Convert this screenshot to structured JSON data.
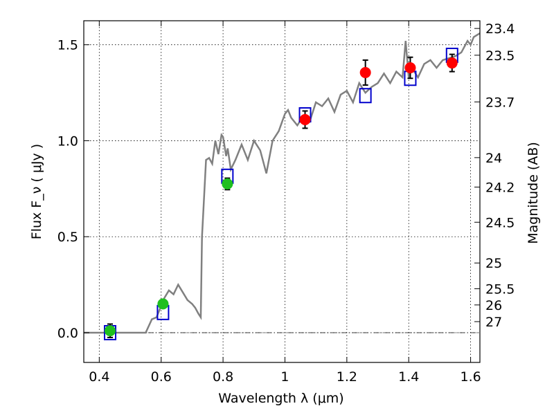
{
  "chart_data": {
    "type": "scatter",
    "xlabel": "Wavelength  λ (μm)",
    "ylabel": "Flux  F_ν  ( μJy )",
    "y2label": "Magnitude (AB)",
    "xlim": [
      0.35,
      1.63
    ],
    "ylim": [
      -0.155,
      1.625
    ],
    "grid": true,
    "x_ticks": [
      0.4,
      0.6,
      0.8,
      1.0,
      1.2,
      1.4,
      1.6
    ],
    "x_tick_labels": [
      "0.4",
      "0.6",
      "0.8",
      "1",
      "1.2",
      "1.4",
      "1.6"
    ],
    "y_ticks": [
      0.0,
      0.5,
      1.0,
      1.5
    ],
    "y_tick_labels": [
      "0.0",
      "0.5",
      "1.0",
      "1.5"
    ],
    "y2_tick_labels": [
      "23.4",
      "23.5",
      "23.7",
      "24",
      "24.2",
      "24.5",
      "25",
      "25.5",
      "26",
      "27"
    ],
    "zero_line": 0.0,
    "series": [
      {
        "kind": "model_spectrum",
        "color": "#808080",
        "x": [
          0.35,
          0.55,
          0.57,
          0.585,
          0.6,
          0.61,
          0.625,
          0.64,
          0.655,
          0.67,
          0.685,
          0.7,
          0.71,
          0.72,
          0.728,
          0.732,
          0.745,
          0.755,
          0.765,
          0.775,
          0.785,
          0.795,
          0.8,
          0.81,
          0.815,
          0.825,
          0.84,
          0.86,
          0.88,
          0.9,
          0.92,
          0.94,
          0.96,
          0.98,
          1.0,
          1.01,
          1.02,
          1.04,
          1.06,
          1.08,
          1.1,
          1.12,
          1.14,
          1.16,
          1.18,
          1.2,
          1.22,
          1.24,
          1.26,
          1.28,
          1.3,
          1.32,
          1.34,
          1.36,
          1.38,
          1.39,
          1.4,
          1.41,
          1.43,
          1.45,
          1.47,
          1.49,
          1.51,
          1.53,
          1.55,
          1.57,
          1.59,
          1.6,
          1.61,
          1.62,
          1.63
        ],
        "values": [
          0.0,
          0.0,
          0.07,
          0.08,
          0.14,
          0.18,
          0.22,
          0.2,
          0.25,
          0.21,
          0.17,
          0.15,
          0.13,
          0.1,
          0.08,
          0.5,
          0.9,
          0.91,
          0.88,
          1.0,
          0.93,
          1.03,
          1.02,
          0.92,
          0.96,
          0.85,
          0.9,
          0.98,
          0.9,
          1.0,
          0.95,
          0.83,
          1.0,
          1.05,
          1.14,
          1.16,
          1.12,
          1.08,
          1.13,
          1.1,
          1.2,
          1.18,
          1.22,
          1.15,
          1.24,
          1.26,
          1.2,
          1.3,
          1.25,
          1.28,
          1.3,
          1.35,
          1.3,
          1.36,
          1.33,
          1.52,
          1.33,
          1.38,
          1.33,
          1.4,
          1.42,
          1.38,
          1.42,
          1.43,
          1.44,
          1.46,
          1.52,
          1.5,
          1.54,
          1.55,
          1.56
        ]
      },
      {
        "kind": "model_photometry",
        "marker": "open-square",
        "color": "#0000cc",
        "x": [
          0.435,
          0.606,
          0.814,
          1.065,
          1.26,
          1.405,
          1.54
        ],
        "values": [
          0.0,
          0.105,
          0.815,
          1.135,
          1.235,
          1.325,
          1.445
        ]
      },
      {
        "kind": "observed_optical",
        "marker": "filled-circle",
        "color": "#1fbf1f",
        "x": [
          0.435,
          0.606,
          0.814
        ],
        "values": [
          0.01,
          0.15,
          0.775
        ],
        "errors": [
          0.035,
          0.02,
          0.03
        ]
      },
      {
        "kind": "observed_nir",
        "marker": "filled-circle",
        "color": "#ff0000",
        "x": [
          1.065,
          1.26,
          1.405,
          1.54
        ],
        "values": [
          1.11,
          1.355,
          1.38,
          1.405
        ],
        "errors": [
          0.045,
          0.065,
          0.055,
          0.045
        ]
      }
    ]
  }
}
